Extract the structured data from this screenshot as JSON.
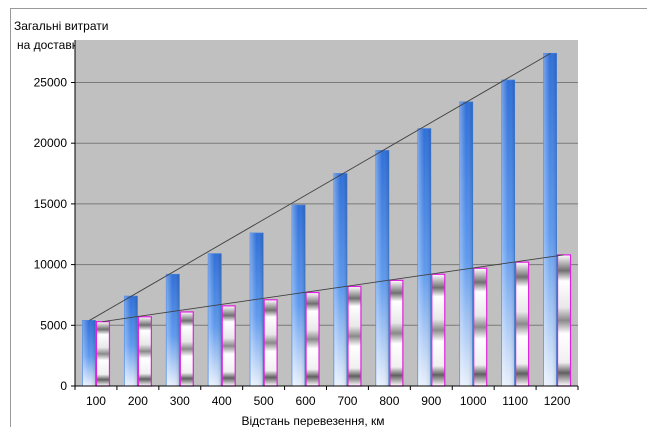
{
  "chart_data": {
    "type": "bar",
    "title": "",
    "ylabel_line1": "Загальні витрати",
    "ylabel_line2": "на доставку, грн",
    "xlabel": "Відстань перевезення, км",
    "categories": [
      "100",
      "200",
      "300",
      "400",
      "500",
      "600",
      "700",
      "800",
      "900",
      "1000",
      "1100",
      "1200"
    ],
    "ylim": [
      0,
      28500
    ],
    "yticks": [
      0,
      5000,
      10000,
      15000,
      20000,
      25000
    ],
    "ytick_labels": [
      "0",
      "5000",
      "10000",
      "15000",
      "20000",
      "25000"
    ],
    "grid": true,
    "legend": "none",
    "series": [
      {
        "values": [
          5400,
          7400,
          9200,
          10900,
          12600,
          14900,
          17500,
          19400,
          21200,
          23400,
          25200,
          27400
        ],
        "color": "#3f7fe0"
      },
      {
        "values": [
          5300,
          5700,
          6100,
          6600,
          7100,
          7700,
          8200,
          8700,
          9200,
          9700,
          10200,
          10800
        ],
        "color": "#e020e0"
      }
    ],
    "trendlines": [
      {
        "series": 0,
        "from": 5400,
        "to": 27400
      },
      {
        "series": 1,
        "from": 5300,
        "to": 10800
      }
    ],
    "colors": {
      "plot_background": "#c0c0c0",
      "gridline": "#7a7a7a",
      "trendline": "#404040"
    }
  }
}
